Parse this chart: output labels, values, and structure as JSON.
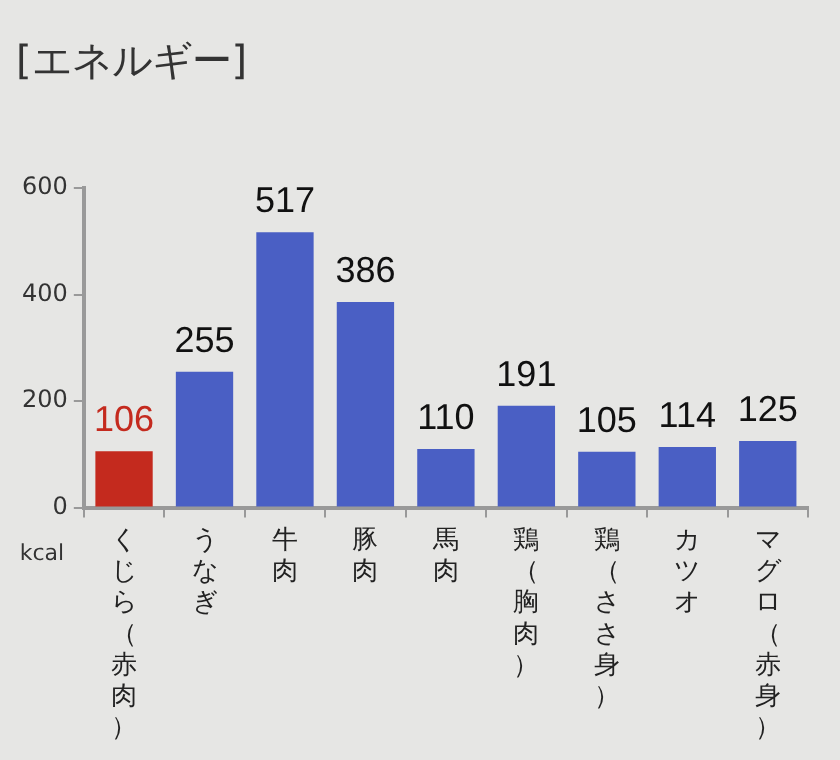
{
  "chart_data": {
    "type": "bar",
    "title": "[エネルギー]",
    "ylabel": "kcal",
    "categories": [
      "くじら（赤肉）",
      "うなぎ",
      "牛肉",
      "豚肉",
      "馬肉",
      "鶏（胸肉）",
      "鶏（ささ身）",
      "カツオ",
      "マグロ（赤身）"
    ],
    "values": [
      106,
      255,
      517,
      386,
      110,
      191,
      105,
      114,
      125
    ],
    "colors": [
      "#c42a1e",
      "#4a5fc4",
      "#4a5fc4",
      "#4a5fc4",
      "#4a5fc4",
      "#4a5fc4",
      "#4a5fc4",
      "#4a5fc4",
      "#4a5fc4"
    ],
    "ylim": [
      0,
      600
    ],
    "yticks": [
      0,
      200,
      400,
      600
    ],
    "grid": false,
    "legend": false,
    "data_labels": true
  }
}
